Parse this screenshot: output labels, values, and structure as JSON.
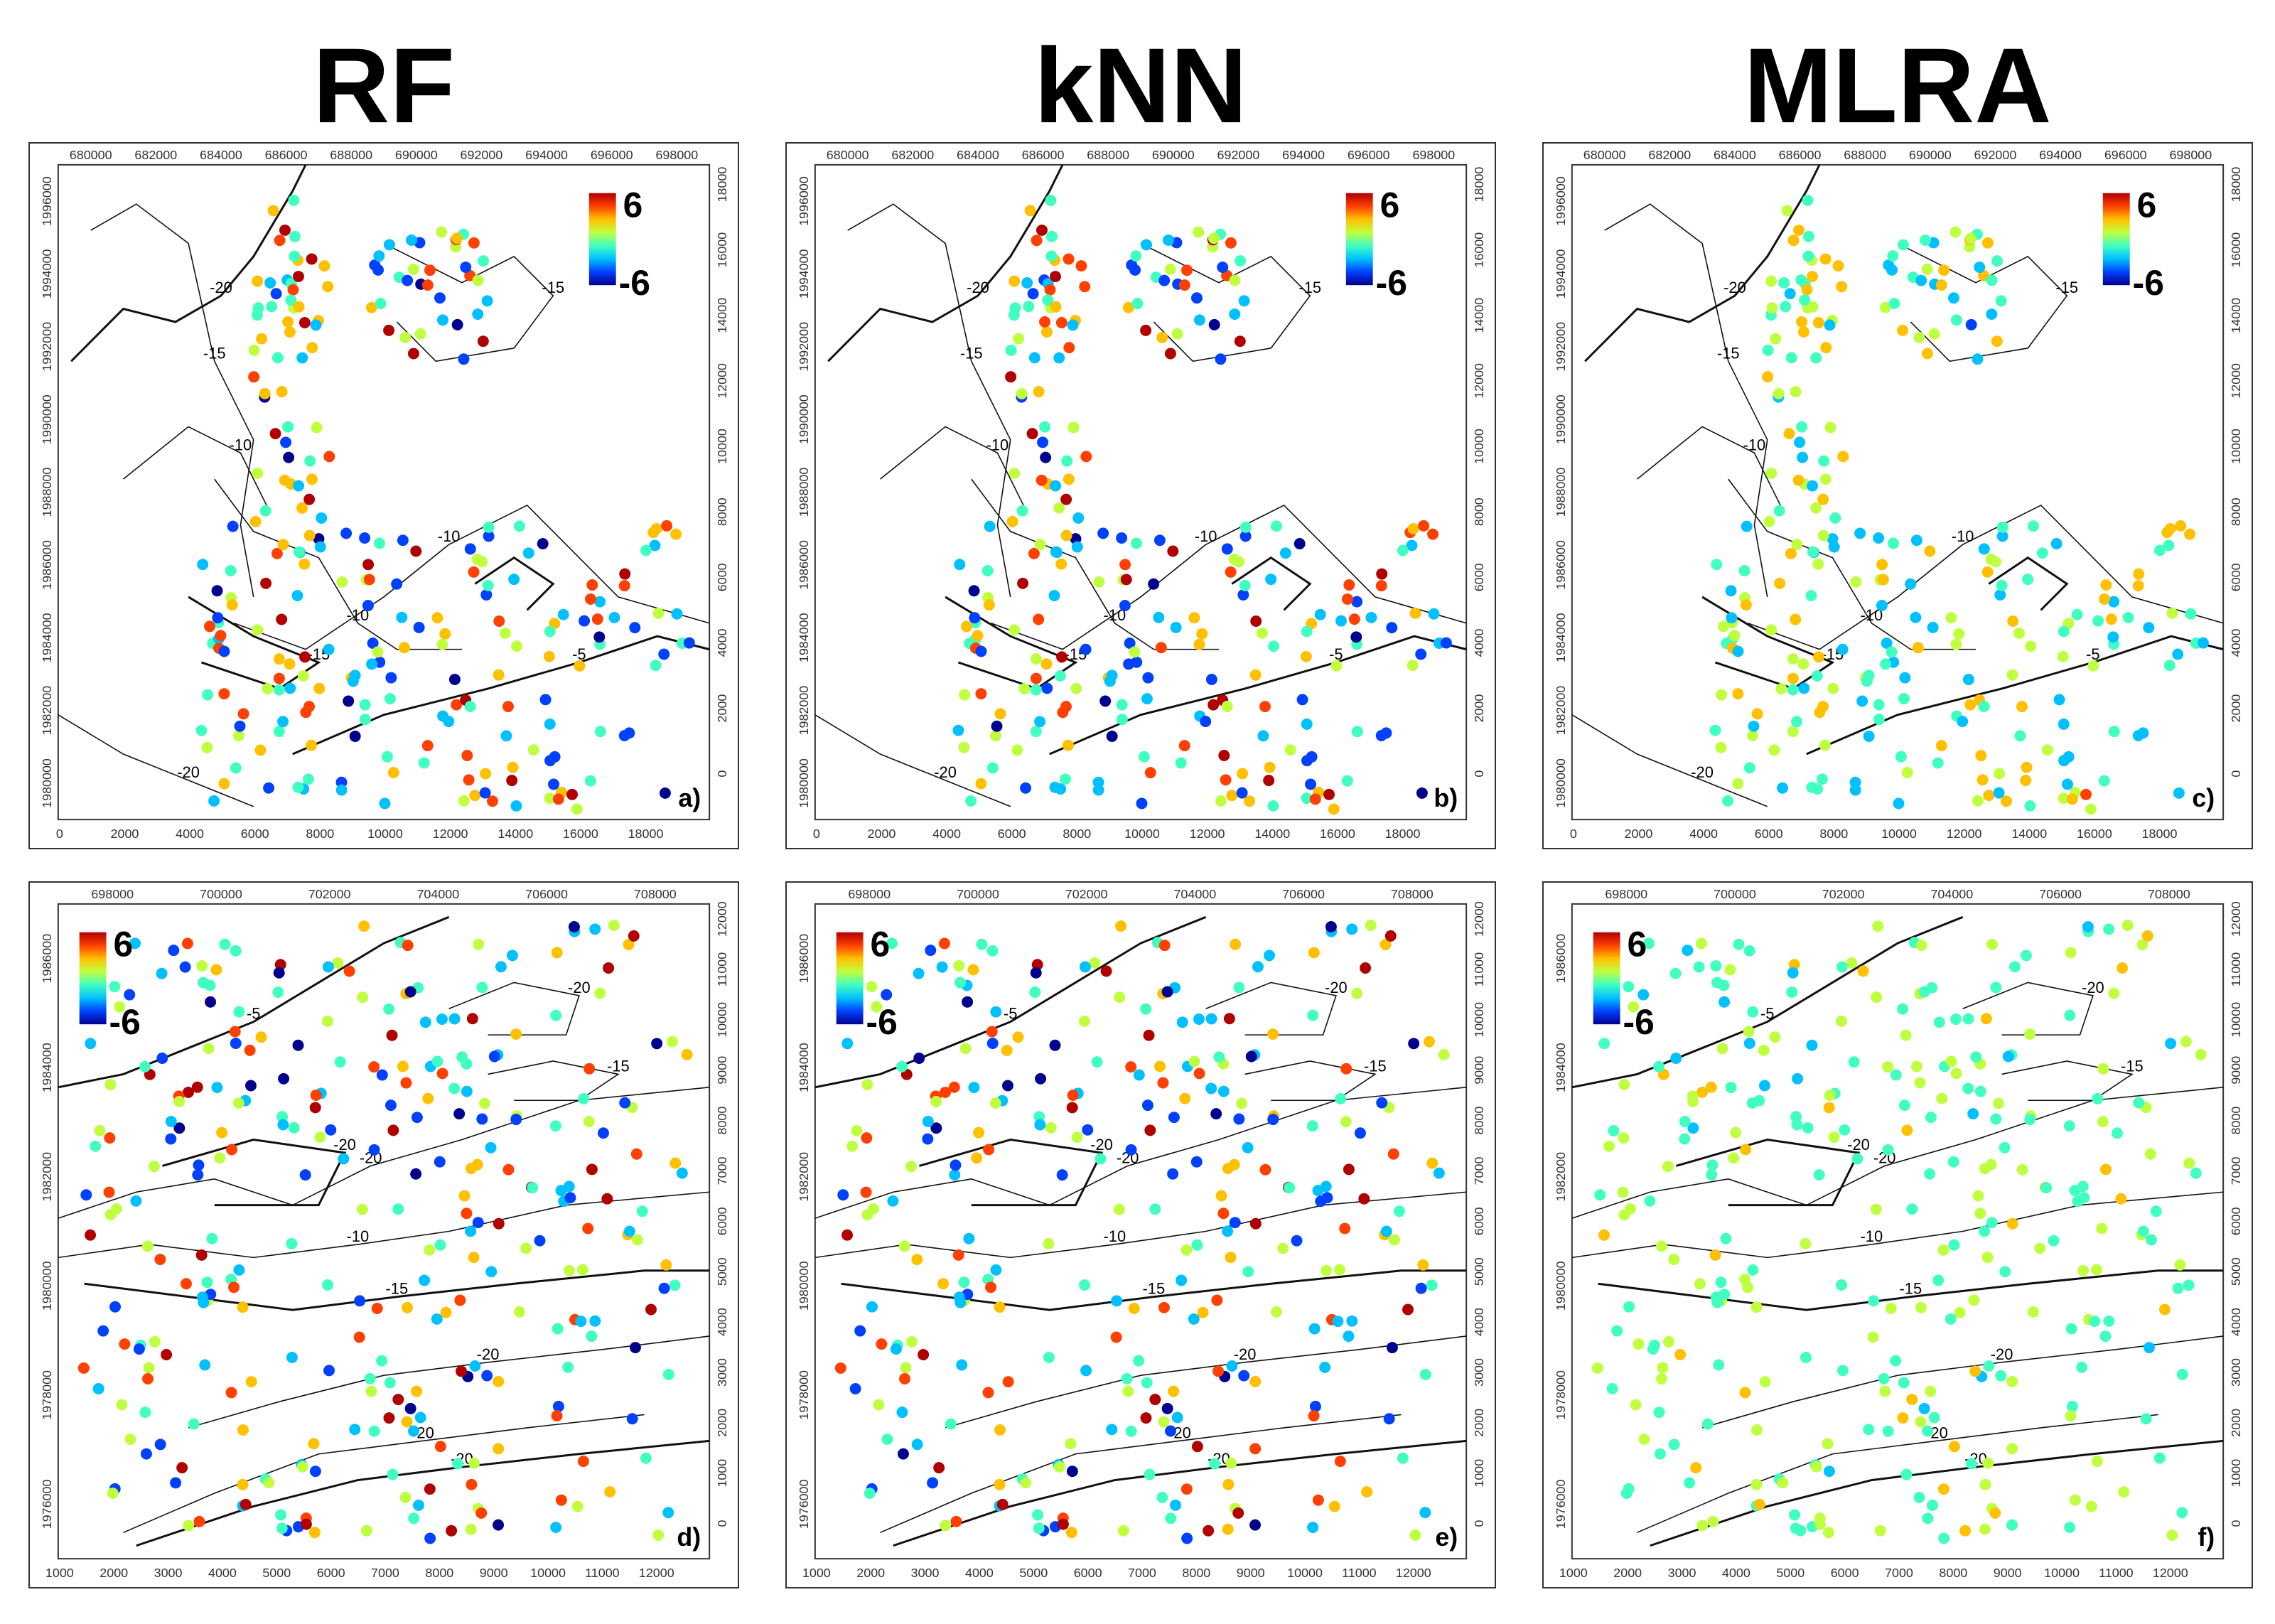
{
  "titles": [
    "RF",
    "kNN",
    "MLRA"
  ],
  "colorbar": {
    "max_label": "6",
    "min_label": "-6",
    "colors": [
      "#00008f",
      "#0040ff",
      "#00c0ff",
      "#40ffc0",
      "#c0ff40",
      "#ffc000",
      "#ff4000",
      "#b00000"
    ]
  },
  "panel_labels": [
    "a)",
    "b)",
    "c)",
    "d)",
    "e)",
    "f)"
  ],
  "top_row": {
    "top_axis_ticks": [
      "680000",
      "682000",
      "684000",
      "686000",
      "688000",
      "690000",
      "692000",
      "694000",
      "696000",
      "698000"
    ],
    "bottom_axis_ticks": [
      "0",
      "2000",
      "4000",
      "6000",
      "8000",
      "10000",
      "12000",
      "14000",
      "16000",
      "18000"
    ],
    "left_axis_ticks": [
      "1996000",
      "1994000",
      "1992000",
      "1990000",
      "1988000",
      "1986000",
      "1984000",
      "1982000",
      "1980000"
    ],
    "right_axis_ticks": [
      "18000",
      "16000",
      "14000",
      "12000",
      "10000",
      "8000",
      "6000",
      "4000",
      "2000",
      "0"
    ],
    "contour_labels": [
      "-20",
      "-15",
      "-10",
      "-5",
      "-15",
      "-10",
      "-15",
      "-10",
      "-20"
    ]
  },
  "bottom_row": {
    "top_axis_ticks": [
      "698000",
      "700000",
      "702000",
      "704000",
      "706000",
      "708000"
    ],
    "bottom_axis_ticks": [
      "1000",
      "2000",
      "3000",
      "4000",
      "5000",
      "6000",
      "7000",
      "8000",
      "9000",
      "10000",
      "11000",
      "12000"
    ],
    "left_axis_ticks": [
      "1986000",
      "1984000",
      "1982000",
      "1980000",
      "1978000",
      "1976000"
    ],
    "right_axis_ticks": [
      "12000",
      "11000",
      "10000",
      "9000",
      "8000",
      "7000",
      "6000",
      "5000",
      "4000",
      "3000",
      "2000",
      "1000",
      "0"
    ],
    "contour_labels": [
      "-5",
      "-20",
      "-10",
      "-15",
      "-20",
      "-20",
      "-20",
      "-20",
      "-15",
      "-20"
    ]
  },
  "panels": [
    {
      "spread": 1.0
    },
    {
      "spread": 1.0
    },
    {
      "spread": 0.55
    },
    {
      "spread": 1.0
    },
    {
      "spread": 1.0
    },
    {
      "spread": 0.35
    }
  ]
}
